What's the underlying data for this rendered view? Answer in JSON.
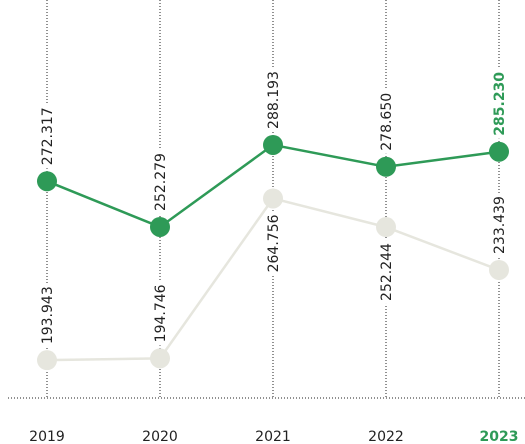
{
  "chart_data": {
    "type": "line",
    "categories": [
      "2019",
      "2020",
      "2021",
      "2022",
      "2023"
    ],
    "series": [
      {
        "color": "#e6e6de",
        "values": [
          193943,
          194746,
          264756,
          252244,
          233439
        ],
        "value_labels": [
          "193.943",
          "194.746",
          "264.756",
          "252.244",
          "233.439"
        ]
      },
      {
        "color": "#2e9a57",
        "values": [
          272317,
          252279,
          288193,
          278650,
          285230
        ],
        "value_labels": [
          "272.317",
          "252.279",
          "288.193",
          "278.650",
          "285.230"
        ]
      }
    ],
    "ylim": [
      180000,
      300000
    ]
  }
}
